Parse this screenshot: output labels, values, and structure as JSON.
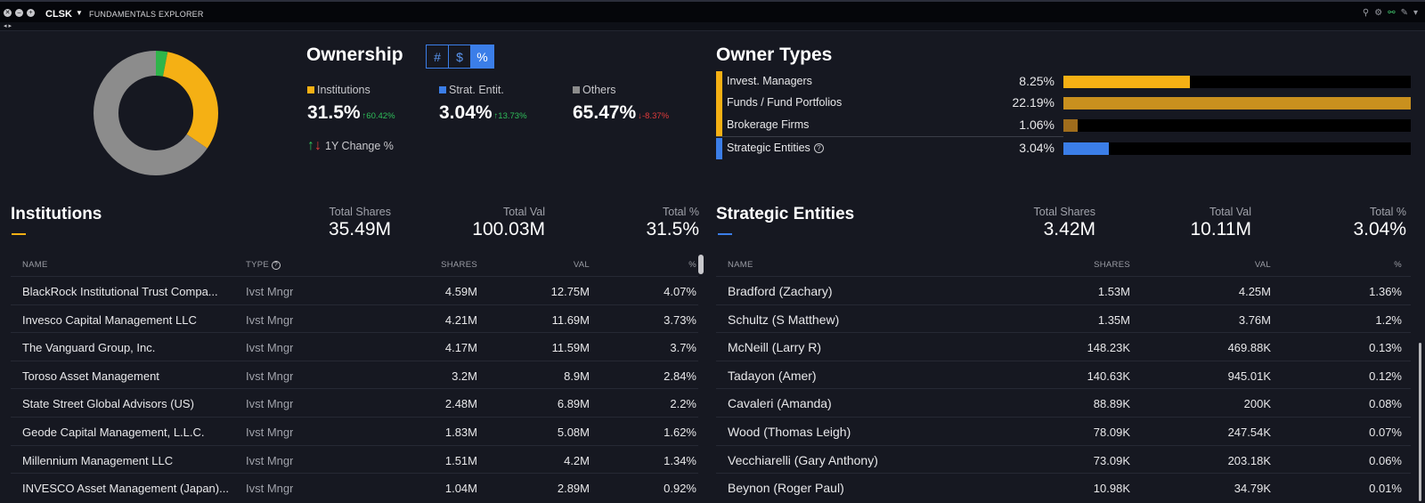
{
  "topbar": {
    "ticker": "CLSK",
    "app_title": "FUNDAMENTALS EXPLORER"
  },
  "colors": {
    "institutions": "#f5b014",
    "strategic": "#3b7ee8",
    "others": "#8c8c8c",
    "green_slice": "#2fb54a",
    "funds": "#c9901e",
    "brokerage": "#a06d1c"
  },
  "donut": {
    "slices": [
      {
        "name": "Strat. Entit.",
        "value": 3.04
      },
      {
        "name": "Institutions",
        "value": 31.5
      },
      {
        "name": "Others",
        "value": 65.47
      }
    ]
  },
  "ownership": {
    "title": "Ownership",
    "toggle": [
      "#",
      "$",
      "%"
    ],
    "active_toggle": "%",
    "stats": [
      {
        "label": "Institutions",
        "value": "31.5%",
        "change": "60.42%",
        "dir": "up"
      },
      {
        "label": "Strat. Entit.",
        "value": "3.04%",
        "change": "13.73%",
        "dir": "up"
      },
      {
        "label": "Others",
        "value": "65.47%",
        "change": "-8.37%",
        "dir": "down"
      }
    ],
    "change_legend": "1Y Change %"
  },
  "owner_types": {
    "title": "Owner Types",
    "rows": [
      {
        "name": "Invest. Managers",
        "pct": "8.25%",
        "fill": 0.365
      },
      {
        "name": "Funds / Fund Portfolios",
        "pct": "22.19%",
        "fill": 1.0
      },
      {
        "name": "Brokerage Firms",
        "pct": "1.06%",
        "fill": 0.04
      },
      {
        "name": "Strategic Entities",
        "pct": "3.04%",
        "fill": 0.13
      }
    ]
  },
  "institutions": {
    "title": "Institutions",
    "totals": {
      "shares_label": "Total Shares",
      "shares": "35.49M",
      "val_label": "Total Val",
      "val": "100.03M",
      "pct_label": "Total %",
      "pct": "31.5%"
    },
    "headers": {
      "name": "NAME",
      "type": "TYPE",
      "shares": "SHARES",
      "val": "VAL",
      "pct": "%"
    },
    "rows": [
      {
        "name": "BlackRock Institutional Trust Compa...",
        "type": "Ivst Mngr",
        "shares": "4.59M",
        "val": "12.75M",
        "pct": "4.07%"
      },
      {
        "name": "Invesco Capital Management LLC",
        "type": "Ivst Mngr",
        "shares": "4.21M",
        "val": "11.69M",
        "pct": "3.73%"
      },
      {
        "name": "The Vanguard Group, Inc.",
        "type": "Ivst Mngr",
        "shares": "4.17M",
        "val": "11.59M",
        "pct": "3.7%"
      },
      {
        "name": "Toroso Asset Management",
        "type": "Ivst Mngr",
        "shares": "3.2M",
        "val": "8.9M",
        "pct": "2.84%"
      },
      {
        "name": "State Street Global Advisors (US)",
        "type": "Ivst Mngr",
        "shares": "2.48M",
        "val": "6.89M",
        "pct": "2.2%"
      },
      {
        "name": "Geode Capital Management, L.L.C.",
        "type": "Ivst Mngr",
        "shares": "1.83M",
        "val": "5.08M",
        "pct": "1.62%"
      },
      {
        "name": "Millennium Management LLC",
        "type": "Ivst Mngr",
        "shares": "1.51M",
        "val": "4.2M",
        "pct": "1.34%"
      },
      {
        "name": "INVESCO Asset Management (Japan)...",
        "type": "Ivst Mngr",
        "shares": "1.04M",
        "val": "2.89M",
        "pct": "0.92%"
      }
    ]
  },
  "strategic": {
    "title": "Strategic Entities",
    "totals": {
      "shares_label": "Total Shares",
      "shares": "3.42M",
      "val_label": "Total Val",
      "val": "10.11M",
      "pct_label": "Total %",
      "pct": "3.04%"
    },
    "headers": {
      "name": "NAME",
      "shares": "SHARES",
      "val": "VAL",
      "pct": "%"
    },
    "rows": [
      {
        "name": "Bradford (Zachary)",
        "shares": "1.53M",
        "val": "4.25M",
        "pct": "1.36%"
      },
      {
        "name": "Schultz (S Matthew)",
        "shares": "1.35M",
        "val": "3.76M",
        "pct": "1.2%"
      },
      {
        "name": "McNeill (Larry R)",
        "shares": "148.23K",
        "val": "469.88K",
        "pct": "0.13%"
      },
      {
        "name": "Tadayon (Amer)",
        "shares": "140.63K",
        "val": "945.01K",
        "pct": "0.12%"
      },
      {
        "name": "Cavaleri (Amanda)",
        "shares": "88.89K",
        "val": "200K",
        "pct": "0.08%"
      },
      {
        "name": "Wood (Thomas Leigh)",
        "shares": "78.09K",
        "val": "247.54K",
        "pct": "0.07%"
      },
      {
        "name": "Vecchiarelli (Gary Anthony)",
        "shares": "73.09K",
        "val": "203.18K",
        "pct": "0.06%"
      },
      {
        "name": "Beynon (Roger Paul)",
        "shares": "10.98K",
        "val": "34.79K",
        "pct": "0.01%"
      }
    ]
  }
}
